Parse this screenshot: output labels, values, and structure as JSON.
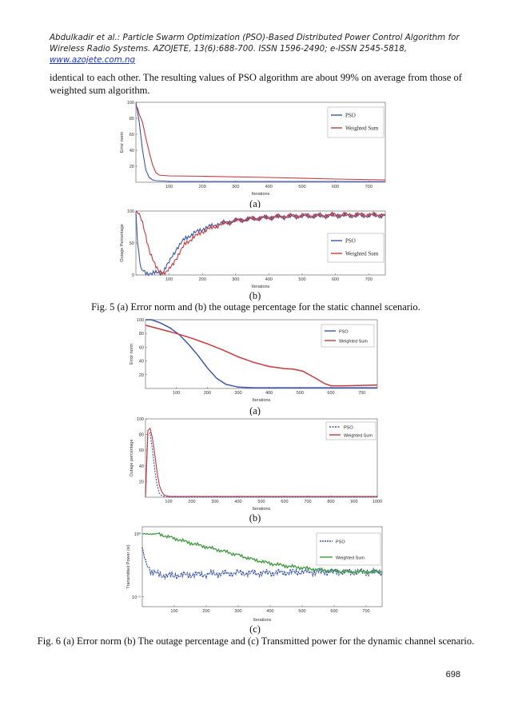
{
  "header": {
    "line1": "Abdulkadir et al.: Particle Swarm Optimization (PSO)-Based Distributed Power Control Algorithm for",
    "line2": "Wireless Radio Systems. AZOJETE, 13(6):688-700. ISSN 1596-2490; e-ISSN 2545-5818,",
    "link": "www.azojete.com.ng"
  },
  "intro_text": "identical to each other. The resulting values of PSO algorithm are about 99% on average from those of weighted sum algorithm.",
  "colors": {
    "pso": "#3a57a8",
    "weighted_sum": "#c8383b",
    "weighted_sum_green": "#3b9a3b"
  },
  "fig5": {
    "sub_a": "(a)",
    "sub_b": "(b)",
    "caption": "Fig. 5 (a) Error norm and (b) the outage percentage for the static channel scenario."
  },
  "fig6": {
    "sub_a": "(a)",
    "sub_b": "(b)",
    "sub_c": "(c)",
    "caption": "Fig. 6 (a) Error norm (b) The outage percentage and (c) Transmitted power for the dynamic channel scenario."
  },
  "page_number": "698",
  "chart_data": [
    {
      "id": "fig5a",
      "type": "line",
      "xlabel": "Iterations",
      "ylabel": "Error norm",
      "xlim": [
        0,
        750
      ],
      "ylim": [
        0,
        100
      ],
      "xticks": [
        100,
        200,
        300,
        400,
        500,
        600,
        700
      ],
      "yticks": [
        20,
        40,
        60,
        80,
        100
      ],
      "legend": [
        "PSO",
        "Weighted Sum"
      ],
      "series": [
        {
          "name": "PSO",
          "x": [
            0,
            10,
            20,
            30,
            40,
            50,
            60,
            80,
            100,
            750
          ],
          "values": [
            100,
            75,
            40,
            15,
            6,
            3,
            2,
            1.5,
            1,
            1
          ]
        },
        {
          "name": "Weighted Sum",
          "x": [
            0,
            5,
            10,
            20,
            30,
            40,
            50,
            60,
            70,
            80,
            100,
            200,
            400,
            600,
            750
          ],
          "values": [
            95,
            93,
            85,
            75,
            55,
            38,
            22,
            12,
            9,
            8.5,
            8,
            7.5,
            6,
            4,
            3
          ]
        }
      ]
    },
    {
      "id": "fig5b",
      "type": "line",
      "xlabel": "Iterations",
      "ylabel": "Outage Percentage",
      "xlim": [
        0,
        750
      ],
      "ylim": [
        0,
        100
      ],
      "xticks": [
        100,
        200,
        300,
        400,
        500,
        600,
        700
      ],
      "yticks": [
        0,
        50,
        100
      ],
      "legend": [
        "PSO",
        "Weighted Sum"
      ],
      "series": [
        {
          "name": "PSO",
          "x": [
            0,
            5,
            15,
            30,
            60,
            80,
            100,
            120,
            150,
            200,
            250,
            300,
            350,
            400,
            450,
            500,
            550,
            600,
            650,
            700,
            750
          ],
          "values": [
            100,
            50,
            8,
            3,
            3,
            4,
            20,
            40,
            58,
            72,
            80,
            85,
            88,
            90,
            91,
            92,
            92,
            93,
            93,
            93,
            93
          ]
        },
        {
          "name": "Weighted Sum",
          "x": [
            0,
            10,
            20,
            30,
            40,
            50,
            60,
            70,
            80,
            90,
            100,
            120,
            150,
            200,
            250,
            300,
            350,
            400,
            450,
            500,
            550,
            600,
            650,
            700,
            750
          ],
          "values": [
            100,
            95,
            80,
            60,
            40,
            25,
            12,
            6,
            4,
            4,
            8,
            25,
            50,
            68,
            78,
            85,
            88,
            90,
            92,
            93,
            93,
            94,
            94,
            94,
            94
          ]
        }
      ]
    },
    {
      "id": "fig6a",
      "type": "line",
      "xlabel": "Iterations",
      "ylabel": "Error norm",
      "xlim": [
        0,
        750
      ],
      "ylim": [
        0,
        100
      ],
      "xticks": [
        100,
        200,
        300,
        400,
        500,
        600,
        700
      ],
      "yticks": [
        20,
        40,
        60,
        80,
        100
      ],
      "legend": [
        "PSO",
        "Weighted Sum"
      ],
      "series": [
        {
          "name": "PSO",
          "x": [
            0,
            20,
            50,
            80,
            110,
            140,
            170,
            200,
            230,
            260,
            300,
            350,
            400,
            750
          ],
          "values": [
            100,
            100,
            95,
            88,
            78,
            64,
            48,
            30,
            15,
            6,
            2,
            1,
            1,
            1
          ]
        },
        {
          "name": "Weighted Sum",
          "x": [
            0,
            50,
            100,
            150,
            200,
            250,
            300,
            350,
            400,
            450,
            480,
            510,
            550,
            580,
            600,
            650,
            700,
            750
          ],
          "values": [
            92,
            86,
            80,
            73,
            65,
            56,
            46,
            38,
            32,
            29,
            28,
            25,
            15,
            7,
            4,
            4,
            4.5,
            5
          ]
        }
      ]
    },
    {
      "id": "fig6b",
      "type": "line",
      "xlabel": "Iterations",
      "ylabel": "Outage percentage",
      "xlim": [
        0,
        1000
      ],
      "ylim": [
        0,
        100
      ],
      "xticks": [
        100,
        200,
        300,
        400,
        500,
        600,
        700,
        800,
        900,
        1000
      ],
      "yticks": [
        20,
        40,
        60,
        80,
        100
      ],
      "legend": [
        "PSO",
        "Weighted Sum"
      ],
      "series": [
        {
          "name": "PSO",
          "x": [
            0,
            10,
            20,
            30,
            40,
            50,
            60,
            70,
            80,
            90,
            100,
            1000
          ],
          "values": [
            0,
            80,
            82,
            60,
            35,
            15,
            5,
            2,
            1,
            0.5,
            0,
            0
          ]
        },
        {
          "name": "Weighted Sum",
          "x": [
            0,
            10,
            20,
            30,
            40,
            50,
            60,
            70,
            80,
            90,
            100,
            120,
            1000
          ],
          "values": [
            0,
            85,
            88,
            75,
            55,
            32,
            15,
            7,
            3,
            2,
            1,
            1,
            1
          ]
        }
      ]
    },
    {
      "id": "fig6c",
      "type": "line",
      "xlabel": "Iterations",
      "ylabel": "Transmitted Power (w)",
      "xlim": [
        0,
        750
      ],
      "yscale": "log",
      "xticks": [
        100,
        200,
        300,
        400,
        500,
        600,
        700
      ],
      "ytick_labels": [
        "10⁰",
        "10⁻¹"
      ],
      "legend": [
        "PSO",
        "Weighted Sum"
      ],
      "series": [
        {
          "name": "PSO",
          "x": [
            0,
            10,
            30,
            60,
            100,
            200,
            300,
            400,
            500,
            600,
            700,
            750
          ],
          "values": [
            0.6,
            0.35,
            0.25,
            0.22,
            0.22,
            0.23,
            0.24,
            0.24,
            0.25,
            0.25,
            0.25,
            0.25
          ]
        },
        {
          "name": "Weighted Sum",
          "x": [
            0,
            50,
            100,
            150,
            200,
            250,
            300,
            350,
            400,
            450,
            500,
            550,
            600,
            650,
            700,
            750
          ],
          "values": [
            1.0,
            1.0,
            0.85,
            0.72,
            0.62,
            0.54,
            0.46,
            0.39,
            0.34,
            0.31,
            0.29,
            0.27,
            0.26,
            0.25,
            0.25,
            0.25
          ]
        }
      ]
    }
  ]
}
